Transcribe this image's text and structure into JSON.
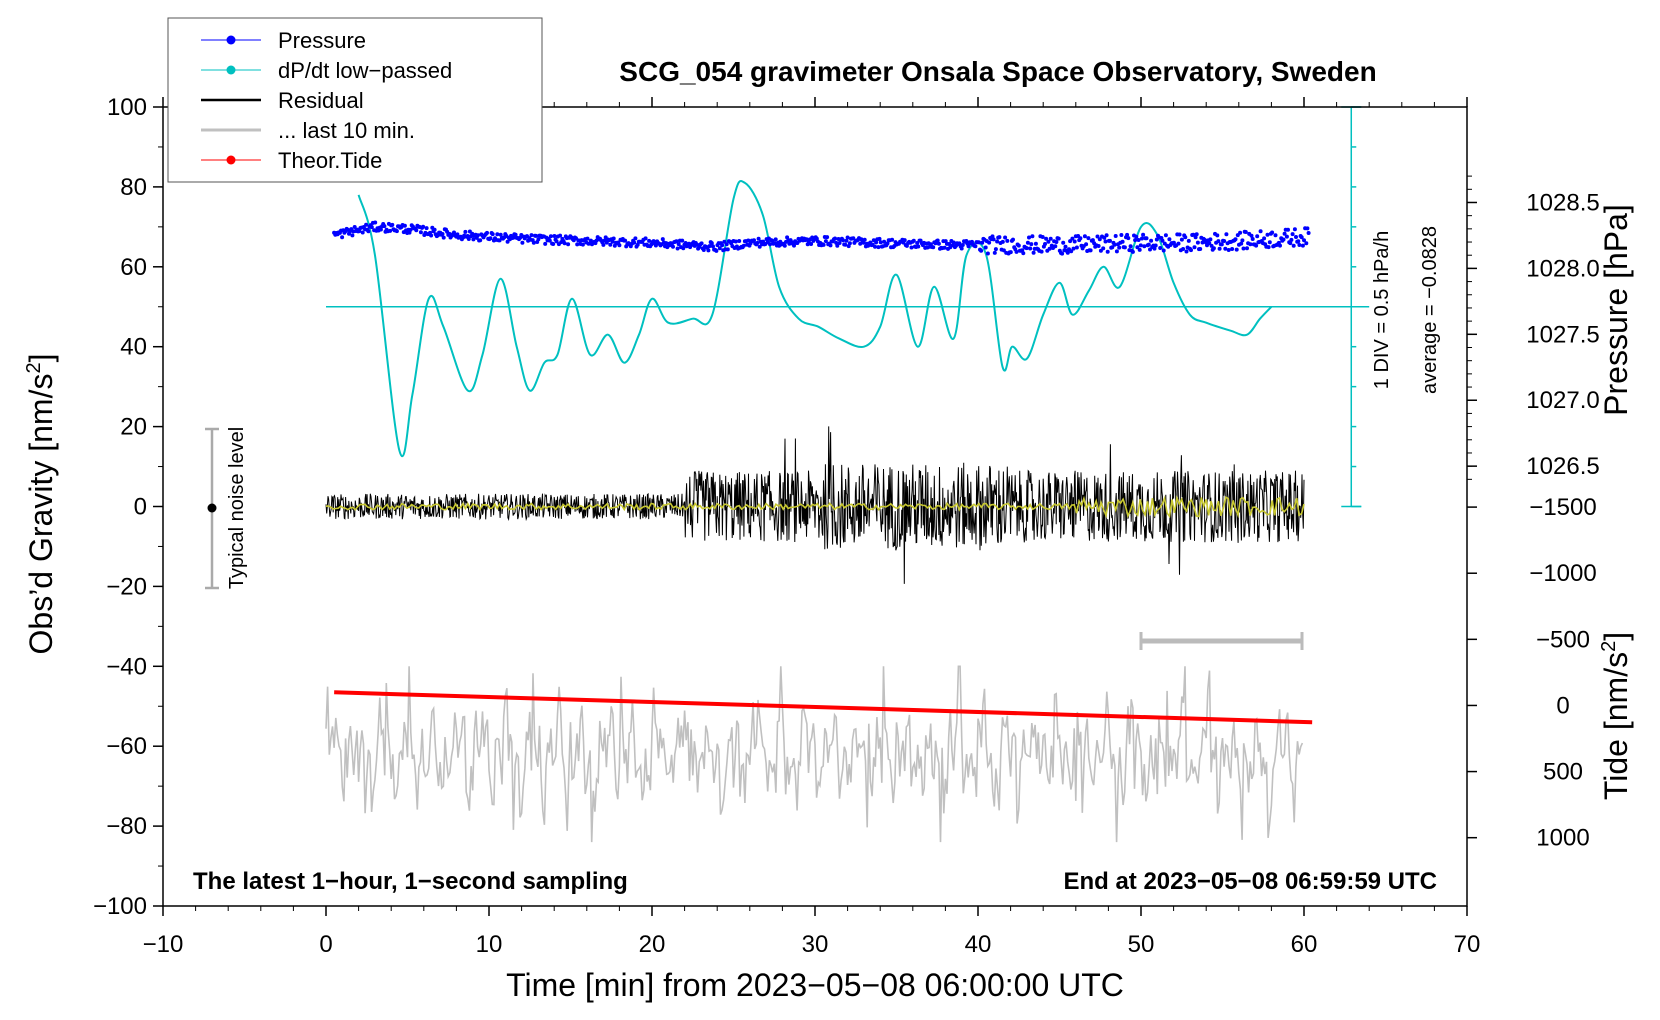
{
  "chart_data": {
    "type": "line",
    "title": "SCG_054 gravimeter Onsala Space Observatory, Sweden",
    "xlabel": "Time [min] from 2023−05−08 06:00:00 UTC",
    "ylabel_left": "Obs’d Gravity [nm/s",
    "ylabel_left_sup": "2",
    "ylabel_left_end": "]",
    "ylabel_right_pressure": "Pressure [hPa]",
    "ylabel_right_tide": "Tide [nm/s",
    "ylabel_right_tide_sup": "2",
    "ylabel_right_tide_end": "]",
    "xlim": [
      -10,
      70
    ],
    "ylim": [
      -100,
      100
    ],
    "x_ticks": [
      {
        "value": -10,
        "label": "−10"
      },
      {
        "value": 0,
        "label": "0"
      },
      {
        "value": 10,
        "label": "10"
      },
      {
        "value": 20,
        "label": "20"
      },
      {
        "value": 30,
        "label": "30"
      },
      {
        "value": 40,
        "label": "40"
      },
      {
        "value": 50,
        "label": "50"
      },
      {
        "value": 60,
        "label": "60"
      },
      {
        "value": 70,
        "label": "70"
      }
    ],
    "y_ticks": [
      {
        "value": 100,
        "label": "100"
      },
      {
        "value": 80,
        "label": "80"
      },
      {
        "value": 60,
        "label": "60"
      },
      {
        "value": 40,
        "label": "40"
      },
      {
        "value": 20,
        "label": "20"
      },
      {
        "value": 0,
        "label": "0"
      },
      {
        "value": -20,
        "label": "−20"
      },
      {
        "value": -40,
        "label": "−40"
      },
      {
        "value": -60,
        "label": "−60"
      },
      {
        "value": -80,
        "label": "−80"
      },
      {
        "value": -100,
        "label": "−100"
      }
    ],
    "pressure_ticks": [
      {
        "value": 1028.5,
        "label": "1028.5"
      },
      {
        "value": 1028.0,
        "label": "1028.0"
      },
      {
        "value": 1027.5,
        "label": "1027.5"
      },
      {
        "value": 1027.0,
        "label": "1027.0"
      },
      {
        "value": 1026.5,
        "label": "1026.5"
      }
    ],
    "tide_ticks": [
      {
        "value": 1000,
        "label": "1000"
      },
      {
        "value": 500,
        "label": "500"
      },
      {
        "value": 0,
        "label": "0"
      },
      {
        "value": -500,
        "label": "−500"
      },
      {
        "value": -1000,
        "label": "−1000"
      },
      {
        "value": -1500,
        "label": "−1500"
      }
    ],
    "legend": [
      {
        "label": "Pressure",
        "color": "#0000ff",
        "marker": true
      },
      {
        "label": "dP/dt low−passed",
        "color": "#00c0c0",
        "marker": true
      },
      {
        "label": "Residual",
        "color": "#000000",
        "marker": false
      },
      {
        "label": "... last 10 min.",
        "color": "#c0c0c0",
        "marker": false
      },
      {
        "label": "Theor.Tide",
        "color": "#ff0000",
        "marker": true
      }
    ],
    "dpdt_scale_label": "1 DIV = 0.5 hPa/h",
    "dpdt_average_label": "average = −0.0828",
    "noise_label": "Typical noise level",
    "bottom_left_note": "The latest 1−hour, 1−second sampling",
    "bottom_right_note": "End at 2023−05−08 06:59:59 UTC",
    "series": [
      {
        "name": "dP/dt low-passed",
        "color": "#00c0c0",
        "x": [
          2.0,
          3.0,
          4.5,
          5.3,
          6.3,
          7.2,
          8.7,
          9.6,
          10.7,
          11.7,
          12.5,
          13.4,
          14.2,
          15.1,
          16.2,
          17.3,
          18.3,
          19.2,
          20.0,
          21.0,
          22.5,
          23.7,
          25.0,
          25.7,
          26.8,
          27.8,
          29.0,
          30.2,
          31.5,
          33.0,
          34.0,
          35.0,
          36.3,
          37.3,
          38.5,
          39.3,
          40.5,
          41.5,
          42.1,
          43.0,
          44.0,
          45.0,
          45.8,
          46.8,
          47.7,
          48.7,
          50.0,
          51.0,
          52.0,
          53.0,
          54.0,
          55.5,
          56.5,
          57.3,
          58.0
        ],
        "y": [
          78,
          63,
          14,
          28,
          52,
          45,
          29,
          38,
          57,
          40,
          29,
          36,
          38,
          52,
          38,
          43,
          36,
          43,
          52,
          46,
          47,
          48,
          77,
          81,
          73,
          55,
          47,
          45,
          42,
          40,
          45,
          58,
          40,
          55,
          42,
          63,
          63,
          35,
          40,
          37,
          48,
          56,
          48,
          54,
          60,
          55,
          70,
          68,
          56,
          48,
          46,
          44,
          43,
          47,
          50
        ]
      },
      {
        "name": "Theor.Tide",
        "color": "#ff0000",
        "x": [
          0.5,
          60.5
        ],
        "y": [
          -46.5,
          -54
        ]
      }
    ],
    "pressure_trend": {
      "x": [
        0.5,
        3,
        5,
        8,
        12,
        16,
        20,
        24,
        26,
        30,
        34,
        38,
        42,
        46,
        50,
        53,
        56,
        60
      ],
      "y": [
        68,
        70,
        69.5,
        68,
        67,
        66.5,
        66,
        65,
        66,
        66.5,
        66,
        65.5,
        65.5,
        65.5,
        66,
        66,
        66.5,
        67.5
      ]
    }
  }
}
